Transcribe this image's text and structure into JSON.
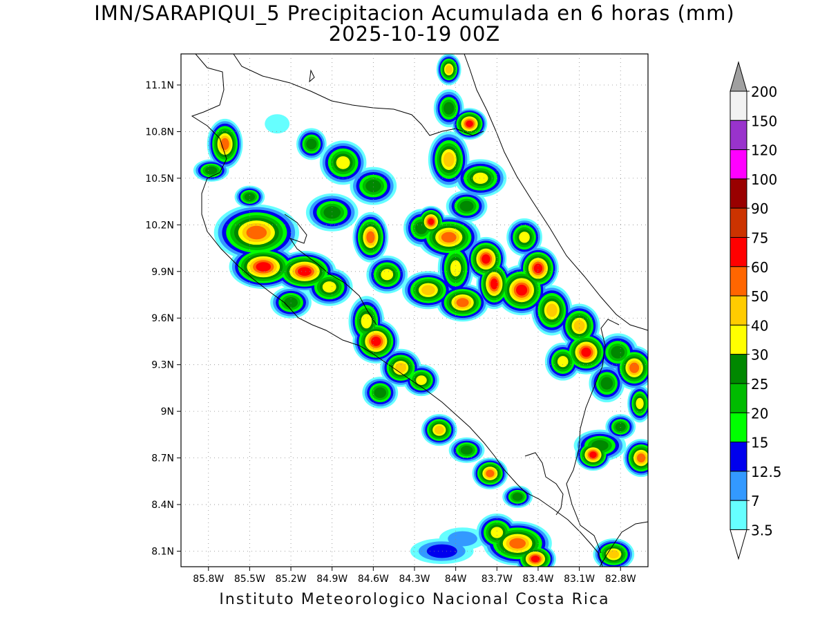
{
  "title": {
    "line1": "IMN/SARAPIQUI_5 Precipitacion Acumulada en 6 horas (mm)",
    "line2": "2025-10-19 00Z"
  },
  "footer": "Instituto Meteorologico Nacional Costa Rica",
  "map": {
    "lon_range": [
      -86.0,
      -82.6
    ],
    "lat_range": [
      8.0,
      11.3
    ],
    "lat_ticks": [
      "11.1N",
      "10.8N",
      "10.5N",
      "10.2N",
      "9.9N",
      "9.6N",
      "9.3N",
      "9N",
      "8.7N",
      "8.4N",
      "8.1N"
    ],
    "lon_ticks": [
      "85.8W",
      "85.5W",
      "85.2W",
      "84.9W",
      "84.6W",
      "84.3W",
      "84W",
      "83.7W",
      "83.4W",
      "83.1W",
      "82.8W"
    ]
  },
  "legend": {
    "labels": [
      "200",
      "150",
      "120",
      "100",
      "90",
      "75",
      "60",
      "50",
      "40",
      "30",
      "25",
      "20",
      "15",
      "12.5",
      "7",
      "3.5"
    ],
    "colors": [
      "#a0a0a0",
      "#f2f2f2",
      "#9933cc",
      "#ff00ff",
      "#990000",
      "#cc3300",
      "#ff0000",
      "#ff6600",
      "#ffcc00",
      "#ffff00",
      "#008800",
      "#00bb00",
      "#00ff00",
      "#0000ee",
      "#3399ff",
      "#66ffff",
      "#ffffff"
    ]
  }
}
